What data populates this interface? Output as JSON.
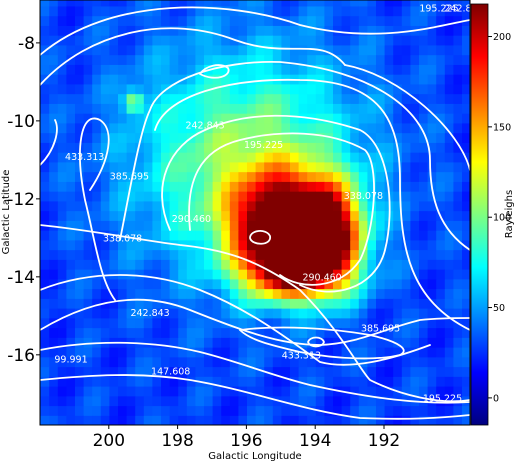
{
  "chart_data": {
    "type": "heatmap",
    "title": "",
    "xlabel": "Galactic Longitude",
    "ylabel": "Galactic Latitude",
    "xlim": [
      202.0,
      189.5
    ],
    "ylim": [
      -17.8,
      -6.9
    ],
    "x_ticks": [
      200,
      198,
      196,
      194,
      192
    ],
    "x_tick_labels": [
      "200",
      "198",
      "196",
      "194",
      "192"
    ],
    "y_ticks": [
      -8,
      -10,
      -12,
      -14,
      -16
    ],
    "y_tick_labels": [
      "-8",
      "-10",
      "-12",
      "-14",
      "-16"
    ],
    "colorbar": {
      "label": "Rayleighs",
      "vmin": -15,
      "vmax": 218,
      "ticks": [
        0,
        50,
        100,
        150,
        200
      ],
      "tick_labels": [
        "0",
        "50",
        "100",
        "150",
        "200"
      ],
      "colormap": "jet"
    },
    "intensity_features": [
      {
        "l": 195.0,
        "b": -12.7,
        "peak": 205,
        "sigma_l": 1.0,
        "sigma_b": 0.9
      },
      {
        "l": 193.6,
        "b": -12.9,
        "peak": 150,
        "sigma_l": 0.7,
        "sigma_b": 0.9
      },
      {
        "l": 194.6,
        "b": -13.9,
        "peak": 120,
        "sigma_l": 1.0,
        "sigma_b": 0.5
      },
      {
        "l": 196.0,
        "b": -11.0,
        "peak": 80,
        "sigma_l": 2.3,
        "sigma_b": 2.0
      },
      {
        "l": 199.3,
        "b": -9.5,
        "peak": 70,
        "sigma_l": 0.2,
        "sigma_b": 0.2
      }
    ],
    "contour_levels": [
      99.991,
      147.608,
      195.225,
      242.843,
      290.46,
      338.078,
      385.695,
      433.313
    ],
    "contour_labels": [
      {
        "text": "195.225",
        "l": 190.4,
        "b": -7.2
      },
      {
        "text": "242.8",
        "l": 189.85,
        "b": -7.2
      },
      {
        "text": "242.843",
        "l": 197.2,
        "b": -10.2
      },
      {
        "text": "195.225",
        "l": 195.5,
        "b": -10.7
      },
      {
        "text": "433.313",
        "l": 200.7,
        "b": -11.0
      },
      {
        "text": "385.695",
        "l": 199.4,
        "b": -11.5
      },
      {
        "text": "290.460",
        "l": 197.6,
        "b": -12.6
      },
      {
        "text": "338.078",
        "l": 199.6,
        "b": -13.1
      },
      {
        "text": "338.078",
        "l": 192.6,
        "b": -12.0
      },
      {
        "text": "290.460",
        "l": 193.8,
        "b": -14.1
      },
      {
        "text": "242.843",
        "l": 198.8,
        "b": -15.0
      },
      {
        "text": "385.695",
        "l": 192.1,
        "b": -15.4
      },
      {
        "text": "433.313",
        "l": 194.4,
        "b": -16.1
      },
      {
        "text": "99.991",
        "l": 201.1,
        "b": -16.2
      },
      {
        "text": "147.608",
        "l": 198.2,
        "b": -16.5
      },
      {
        "text": "195.225",
        "l": 190.3,
        "b": -17.2
      }
    ]
  }
}
